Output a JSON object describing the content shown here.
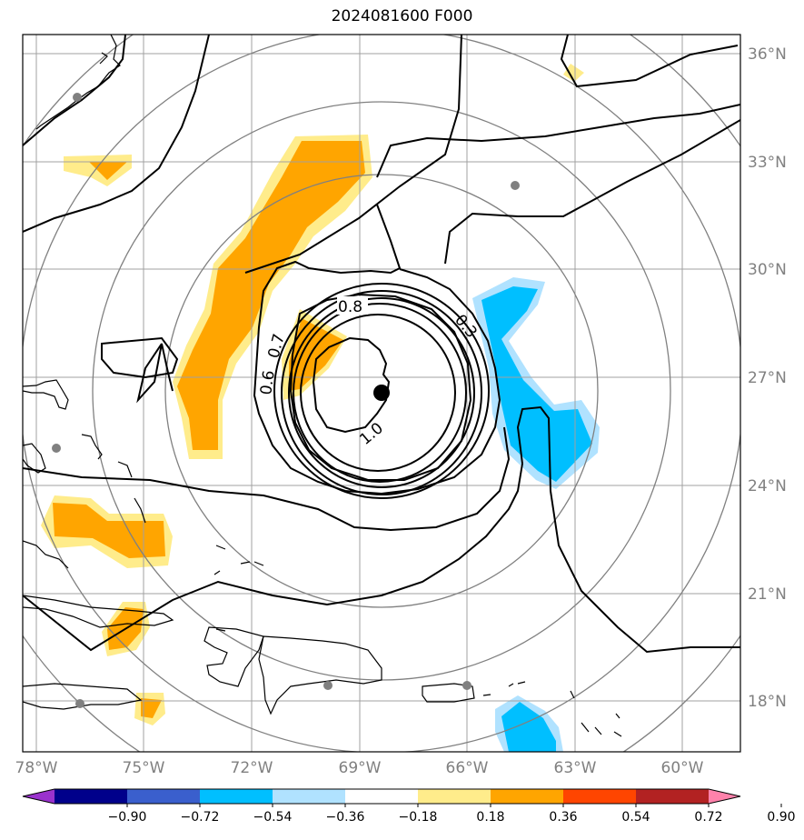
{
  "title": "2024081600 F000",
  "map": {
    "lon_labels": [
      "78°W",
      "75°W",
      "72°W",
      "69°W",
      "66°W",
      "63°W",
      "60°W"
    ],
    "lat_labels": [
      "36°N",
      "33°N",
      "30°N",
      "27°N",
      "24°N",
      "21°N",
      "18°N"
    ],
    "contour_labels": [
      "0.8",
      "0.7",
      "0.6",
      "0.3",
      "1.0"
    ],
    "storm_center": {
      "lon": "68.3°W",
      "lat": "26.6°N"
    }
  },
  "colorbar": {
    "ticks": [
      "−0.90",
      "−0.72",
      "−0.54",
      "−0.36",
      "−0.18",
      "0.18",
      "0.36",
      "0.54",
      "0.72",
      "0.90"
    ],
    "colors": [
      "#9a32cd",
      "#00008b",
      "#3a5fcd",
      "#00bfff",
      "#b0e2ff",
      "#ffffff",
      "#ffec8b",
      "#ffa500",
      "#ff4500",
      "#b22222",
      "#ff82ab"
    ]
  }
}
